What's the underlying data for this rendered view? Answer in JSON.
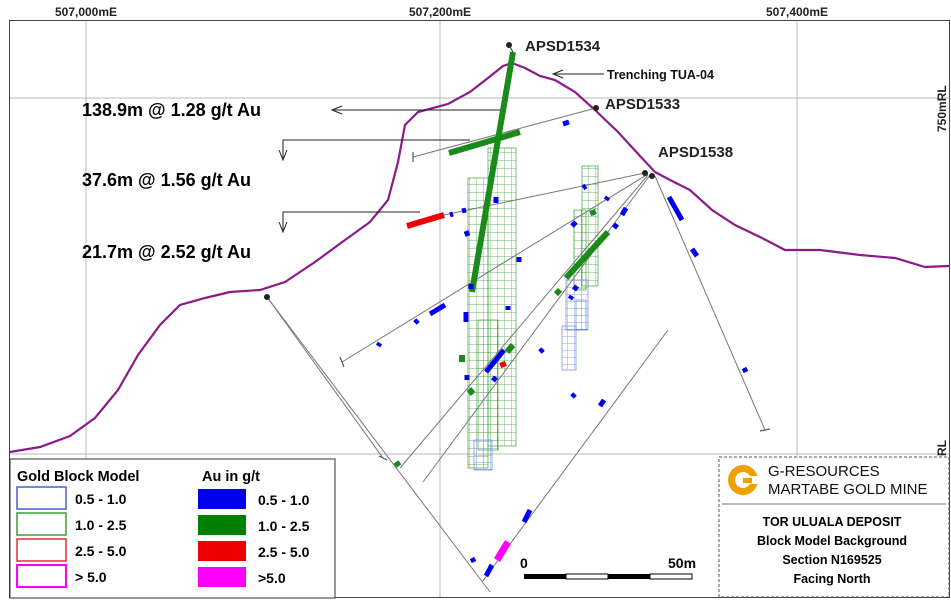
{
  "grid": {
    "eastings": [
      "507,000mE",
      "507,200mE",
      "507,400mE"
    ],
    "rl_labels": [
      "750mRL",
      "RL"
    ]
  },
  "drillholes": [
    "APSD1534",
    "APSD1533",
    "APSD1538"
  ],
  "trench": "Trenching TUA-04",
  "intercepts": [
    "138.9m @ 1.28 g/t Au",
    "37.6m @ 1.56 g/t Au",
    "21.7m @ 2.52 g/t Au"
  ],
  "legend_block": {
    "title": "Gold Block Model",
    "items": [
      {
        "label": "0.5 - 1.0",
        "color": "#4a5fd0"
      },
      {
        "label": "1.0 - 2.5",
        "color": "#3aa03a"
      },
      {
        "label": "2.5 - 5.0",
        "color": "#e03030"
      },
      {
        "label": "> 5.0",
        "color": "#ff00ff"
      }
    ]
  },
  "legend_au": {
    "title": "Au in g/t",
    "items": [
      {
        "label": "0.5 - 1.0",
        "color": "#0000ff"
      },
      {
        "label": "1.0 - 2.5",
        "color": "#008000"
      },
      {
        "label": "2.5 - 5.0",
        "color": "#ff0000"
      },
      {
        "label": ">5.0",
        "color": "#ff00ff"
      }
    ]
  },
  "scale_bar": {
    "start": "0",
    "end": "50m"
  },
  "title_block": {
    "company": "G-RESOURCES",
    "mine": "MARTABE GOLD MINE",
    "lines": [
      "TOR ULUALA DEPOSIT",
      "Block Model Background",
      "Section N169525",
      "Facing North"
    ]
  },
  "colors": {
    "topography": "#8b1a8b",
    "grid": "#b8b8b8",
    "logo": "#f0a000"
  }
}
